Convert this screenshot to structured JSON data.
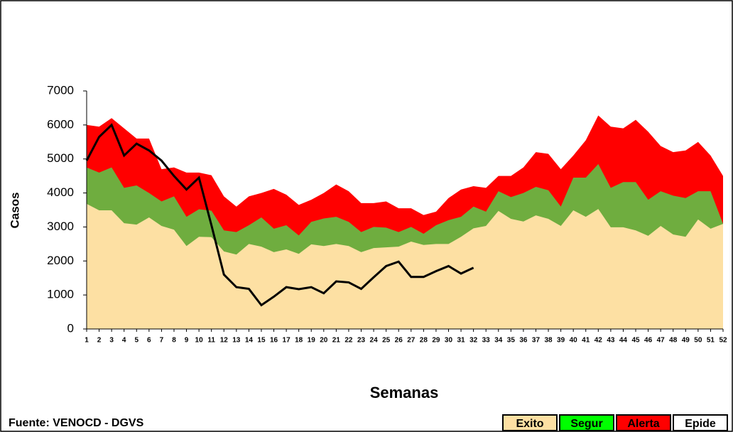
{
  "chart_data": {
    "type": "area",
    "y_label": "Casos",
    "x_label": "Semanas",
    "source": "Fuente: VENOCD - DGVS",
    "x": [
      1,
      2,
      3,
      4,
      5,
      6,
      7,
      8,
      9,
      10,
      11,
      12,
      13,
      14,
      15,
      16,
      17,
      18,
      19,
      20,
      21,
      22,
      23,
      24,
      25,
      26,
      27,
      28,
      29,
      30,
      31,
      32,
      33,
      34,
      35,
      36,
      37,
      38,
      39,
      40,
      41,
      42,
      43,
      44,
      45,
      46,
      47,
      48,
      49,
      50,
      51,
      52
    ],
    "xticks": [
      1,
      2,
      3,
      4,
      5,
      6,
      7,
      8,
      9,
      10,
      11,
      12,
      13,
      14,
      15,
      16,
      17,
      18,
      19,
      20,
      21,
      22,
      23,
      24,
      25,
      26,
      27,
      28,
      29,
      30,
      31,
      32,
      33,
      34,
      35,
      36,
      37,
      38,
      39,
      40,
      41,
      42,
      43,
      44,
      45,
      46,
      47,
      48,
      49,
      50,
      51,
      52
    ],
    "xlim": [
      1,
      52
    ],
    "ylim": [
      0,
      7000
    ],
    "yticks": [
      0,
      1000,
      2000,
      3000,
      4000,
      5000,
      6000,
      7000
    ],
    "series": [
      {
        "name": "Exito",
        "color": "#fde0a3",
        "values": [
          3680,
          3490,
          3490,
          3110,
          3070,
          3280,
          3030,
          2920,
          2440,
          2710,
          2700,
          2280,
          2190,
          2500,
          2420,
          2260,
          2340,
          2210,
          2490,
          2440,
          2500,
          2440,
          2260,
          2380,
          2400,
          2420,
          2570,
          2470,
          2500,
          2500,
          2710,
          2960,
          3030,
          3470,
          3240,
          3160,
          3340,
          3240,
          3030,
          3490,
          3300,
          3530,
          2990,
          2990,
          2900,
          2740,
          3030,
          2780,
          2710,
          3220,
          2950,
          3090
        ]
      },
      {
        "name": "Segur",
        "color": "#6fad3f",
        "values": [
          4750,
          4600,
          4750,
          4150,
          4220,
          4000,
          3750,
          3900,
          3300,
          3520,
          3480,
          2900,
          2850,
          3050,
          3280,
          2950,
          3050,
          2750,
          3150,
          3250,
          3300,
          3150,
          2850,
          3000,
          2980,
          2850,
          3000,
          2800,
          3050,
          3200,
          3300,
          3600,
          3450,
          4050,
          3880,
          4000,
          4180,
          4080,
          3600,
          4450,
          4450,
          4850,
          4150,
          4320,
          4320,
          3800,
          4050,
          3920,
          3850,
          4050,
          4050,
          3090
        ]
      },
      {
        "name": "Alerta",
        "color": "#ff0000",
        "values": [
          6000,
          5950,
          6200,
          5900,
          5600,
          5600,
          4700,
          4750,
          4600,
          4600,
          4520,
          3900,
          3600,
          3900,
          4000,
          4120,
          3950,
          3650,
          3800,
          4000,
          4250,
          4050,
          3700,
          3700,
          3750,
          3550,
          3550,
          3350,
          3450,
          3850,
          4100,
          4200,
          4150,
          4500,
          4500,
          4750,
          5200,
          5150,
          4700,
          5100,
          5550,
          6280,
          5950,
          5900,
          6150,
          5800,
          5380,
          5200,
          5250,
          5500,
          5100,
          4500
        ]
      },
      {
        "name": "Epide",
        "color": "#000000",
        "line": true,
        "values": [
          4950,
          5650,
          6000,
          5100,
          5450,
          5250,
          4950,
          4500,
          4100,
          4450,
          3050,
          1600,
          1230,
          1180,
          700,
          950,
          1230,
          1170,
          1230,
          1050,
          1400,
          1370,
          1180,
          1520,
          1850,
          1980,
          1530,
          1530,
          1700,
          1850,
          1630,
          1800,
          null,
          null,
          null,
          null,
          null,
          null,
          null,
          null,
          null,
          null,
          null,
          null,
          null,
          null,
          null,
          null,
          null,
          null,
          null,
          null
        ]
      }
    ]
  }
}
